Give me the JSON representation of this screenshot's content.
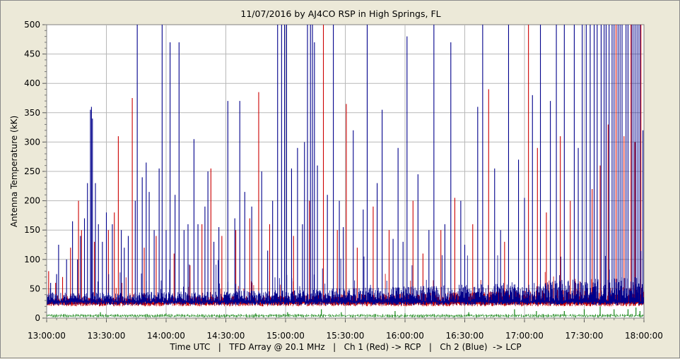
{
  "chart_data": {
    "type": "line",
    "title": "11/07/2016  by  AJ4CO RSP  in  High Springs, FL",
    "xlabel": "Time UTC   |   TFD Array @ 20.1 MHz   |   Ch 1 (Red) -> RCP   |   Ch 2 (Blue)  -> LCP",
    "ylabel": "Antenna Temperature (kK)",
    "x_ticks": [
      "13:00:00",
      "13:30:00",
      "14:00:00",
      "14:30:00",
      "15:00:00",
      "15:30:00",
      "16:00:00",
      "16:30:00",
      "17:00:00",
      "17:30:00",
      "18:00:00"
    ],
    "y_ticks": [
      "0",
      "50",
      "100",
      "150",
      "200",
      "250",
      "300",
      "350",
      "400",
      "450",
      "500"
    ],
    "xlim": [
      "13:00:00",
      "18:00:00"
    ],
    "ylim": [
      0,
      500
    ],
    "grid": true,
    "series": [
      {
        "color": "#cc0000",
        "baseline": 26,
        "spikes": [
          [
            "13:01:00",
            80
          ],
          [
            "13:04:30",
            60
          ],
          [
            "13:08:00",
            70
          ],
          [
            "13:12:00",
            120
          ],
          [
            "13:16:00",
            200
          ],
          [
            "13:17:30",
            150
          ],
          [
            "13:24:00",
            130
          ],
          [
            "13:31:00",
            150
          ],
          [
            "13:34:00",
            180
          ],
          [
            "13:36:00",
            310
          ],
          [
            "13:43:00",
            375
          ],
          [
            "13:49:00",
            120
          ],
          [
            "13:55:00",
            140
          ],
          [
            "14:04:00",
            110
          ],
          [
            "14:12:00",
            90
          ],
          [
            "14:18:00",
            160
          ],
          [
            "14:22:30",
            255
          ],
          [
            "14:28:00",
            140
          ],
          [
            "14:35:00",
            150
          ],
          [
            "14:42:00",
            170
          ],
          [
            "14:46:30",
            385
          ],
          [
            "14:52:00",
            160
          ],
          [
            "15:04:00",
            140
          ],
          [
            "15:12:00",
            200
          ],
          [
            "15:19:00",
            500
          ],
          [
            "15:26:00",
            150
          ],
          [
            "15:30:30",
            365
          ],
          [
            "15:36:00",
            120
          ],
          [
            "15:44:00",
            190
          ],
          [
            "15:52:00",
            150
          ],
          [
            "16:04:00",
            200
          ],
          [
            "16:09:00",
            110
          ],
          [
            "16:18:00",
            150
          ],
          [
            "16:25:00",
            205
          ],
          [
            "16:34:00",
            160
          ],
          [
            "16:42:00",
            390
          ],
          [
            "16:50:00",
            130
          ],
          [
            "17:02:00",
            500
          ],
          [
            "17:06:30",
            290
          ],
          [
            "17:11:00",
            180
          ],
          [
            "17:18:00",
            310
          ],
          [
            "17:23:00",
            200
          ],
          [
            "17:34:00",
            220
          ],
          [
            "17:38:00",
            260
          ],
          [
            "17:42:00",
            330
          ],
          [
            "17:46:00",
            500
          ],
          [
            "17:50:00",
            310
          ],
          [
            "17:53:30",
            500
          ],
          [
            "17:55:30",
            300
          ],
          [
            "17:58:30",
            500
          ]
        ]
      },
      {
        "color": "#00008b",
        "baseline": 28,
        "spikes": [
          [
            "13:02:00",
            60
          ],
          [
            "13:05:00",
            75
          ],
          [
            "13:06:00",
            125
          ],
          [
            "13:10:00",
            100
          ],
          [
            "13:13:00",
            165
          ],
          [
            "13:15:30",
            100
          ],
          [
            "13:17:00",
            140
          ],
          [
            "13:19:00",
            170
          ],
          [
            "13:20:30",
            230
          ],
          [
            "13:22:00",
            355
          ],
          [
            "13:22:30",
            360
          ],
          [
            "13:23:00",
            340
          ],
          [
            "13:24:30",
            230
          ],
          [
            "13:26:00",
            160
          ],
          [
            "13:28:00",
            130
          ],
          [
            "13:30:00",
            180
          ],
          [
            "13:33:00",
            160
          ],
          [
            "13:37:30",
            150
          ],
          [
            "13:39:00",
            120
          ],
          [
            "13:41:00",
            140
          ],
          [
            "13:44:30",
            200
          ],
          [
            "13:45:30",
            500
          ],
          [
            "13:48:00",
            240
          ],
          [
            "13:50:00",
            265
          ],
          [
            "13:51:30",
            215
          ],
          [
            "13:54:00",
            150
          ],
          [
            "13:56:30",
            255
          ],
          [
            "13:58:00",
            500
          ],
          [
            "14:00:00",
            150
          ],
          [
            "14:02:00",
            470
          ],
          [
            "14:04:30",
            210
          ],
          [
            "14:06:30",
            470
          ],
          [
            "14:09:00",
            150
          ],
          [
            "14:11:00",
            160
          ],
          [
            "14:14:00",
            305
          ],
          [
            "14:16:00",
            160
          ],
          [
            "14:19:30",
            190
          ],
          [
            "14:21:00",
            250
          ],
          [
            "14:24:00",
            130
          ],
          [
            "14:26:30",
            155
          ],
          [
            "14:31:00",
            370
          ],
          [
            "14:34:30",
            170
          ],
          [
            "14:37:00",
            370
          ],
          [
            "14:39:30",
            215
          ],
          [
            "14:43:00",
            190
          ],
          [
            "14:48:00",
            250
          ],
          [
            "14:51:00",
            115
          ],
          [
            "14:53:30",
            200
          ],
          [
            "14:56:00",
            500
          ],
          [
            "14:58:00",
            500
          ],
          [
            "14:59:30",
            500
          ],
          [
            "15:00:30",
            500
          ],
          [
            "15:03:00",
            255
          ],
          [
            "15:06:00",
            290
          ],
          [
            "15:08:30",
            160
          ],
          [
            "15:09:30",
            300
          ],
          [
            "15:11:00",
            500
          ],
          [
            "15:12:30",
            500
          ],
          [
            "15:13:30",
            500
          ],
          [
            "15:14:30",
            470
          ],
          [
            "15:16:00",
            260
          ],
          [
            "15:21:00",
            210
          ],
          [
            "15:24:00",
            500
          ],
          [
            "15:27:00",
            200
          ],
          [
            "15:29:00",
            155
          ],
          [
            "15:34:00",
            320
          ],
          [
            "15:39:00",
            185
          ],
          [
            "15:41:00",
            500
          ],
          [
            "15:46:00",
            230
          ],
          [
            "15:48:30",
            355
          ],
          [
            "15:54:00",
            135
          ],
          [
            "15:56:30",
            290
          ],
          [
            "15:59:00",
            130
          ],
          [
            "16:01:00",
            480
          ],
          [
            "16:06:30",
            245
          ],
          [
            "16:12:00",
            150
          ],
          [
            "16:14:30",
            500
          ],
          [
            "16:20:00",
            160
          ],
          [
            "16:23:00",
            470
          ],
          [
            "16:28:00",
            200
          ],
          [
            "16:30:00",
            125
          ],
          [
            "16:36:30",
            360
          ],
          [
            "16:39:00",
            500
          ],
          [
            "16:45:00",
            255
          ],
          [
            "16:48:00",
            150
          ],
          [
            "16:52:00",
            500
          ],
          [
            "16:57:00",
            270
          ],
          [
            "17:00:00",
            205
          ],
          [
            "17:04:00",
            380
          ],
          [
            "17:08:00",
            500
          ],
          [
            "17:13:00",
            370
          ],
          [
            "17:16:00",
            500
          ],
          [
            "17:20:00",
            500
          ],
          [
            "17:25:00",
            500
          ],
          [
            "17:27:00",
            290
          ],
          [
            "17:29:00",
            500
          ],
          [
            "17:31:00",
            500
          ],
          [
            "17:33:00",
            500
          ],
          [
            "17:35:00",
            500
          ],
          [
            "17:36:30",
            500
          ],
          [
            "17:38:30",
            500
          ],
          [
            "17:40:00",
            500
          ],
          [
            "17:41:00",
            500
          ],
          [
            "17:42:30",
            500
          ],
          [
            "17:44:00",
            500
          ],
          [
            "17:45:00",
            500
          ],
          [
            "17:47:00",
            500
          ],
          [
            "17:48:00",
            500
          ],
          [
            "17:49:00",
            500
          ],
          [
            "17:51:00",
            500
          ],
          [
            "17:52:00",
            500
          ],
          [
            "17:54:00",
            500
          ],
          [
            "17:55:00",
            500
          ],
          [
            "17:56:00",
            500
          ],
          [
            "17:57:00",
            500
          ],
          [
            "17:58:00",
            500
          ],
          [
            "17:59:30",
            320
          ]
        ]
      },
      {
        "color": "#007a00",
        "baseline": 4,
        "spikes": [
          [
            "13:27:00",
            10
          ],
          [
            "14:00:00",
            8
          ],
          [
            "14:45:00",
            8
          ],
          [
            "15:01:00",
            10
          ],
          [
            "15:18:00",
            15
          ],
          [
            "15:28:00",
            10
          ],
          [
            "15:55:00",
            12
          ],
          [
            "16:00:00",
            8
          ],
          [
            "16:32:00",
            10
          ],
          [
            "16:55:00",
            15
          ],
          [
            "17:06:00",
            12
          ],
          [
            "17:20:00",
            12
          ],
          [
            "17:30:00",
            15
          ],
          [
            "17:38:00",
            20
          ],
          [
            "17:45:00",
            15
          ],
          [
            "17:52:00",
            15
          ],
          [
            "17:56:00",
            18
          ],
          [
            "17:58:00",
            12
          ]
        ]
      }
    ]
  }
}
